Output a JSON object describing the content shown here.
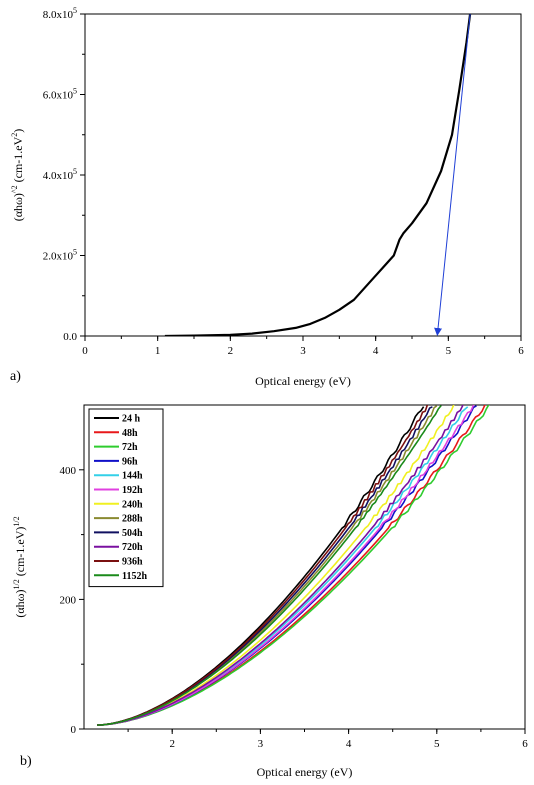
{
  "chart_data": [
    {
      "type": "line",
      "panel_label": "a)",
      "xlabel": "Optical energy (eV)",
      "ylabel": "(αhω)^2 (cm-1.eV)^2",
      "ylabel_base": "(αhω)",
      "ylabel_exp1": "^2",
      "ylabel_mid": " (cm-1.eV",
      "ylabel_close": ")",
      "ylabel_exp2": "2",
      "xlim": [
        0,
        6
      ],
      "ylim": [
        0,
        800000
      ],
      "xticks": [
        0,
        1,
        2,
        3,
        4,
        5,
        6
      ],
      "xtick_labels": [
        "0",
        "1",
        "2",
        "3",
        "4",
        "5",
        "6"
      ],
      "yticks": [
        0,
        200000,
        400000,
        600000,
        800000
      ],
      "ytick_labels": [
        {
          "mantissa": "0.0",
          "exp": ""
        },
        {
          "mantissa": "2.0x10",
          "exp": "5"
        },
        {
          "mantissa": "4.0x10",
          "exp": "5"
        },
        {
          "mantissa": "6.0x10",
          "exp": "5"
        },
        {
          "mantissa": "8.0x10",
          "exp": "5"
        }
      ],
      "series": [
        {
          "color": "#000000",
          "x": [
            1.1,
            1.5,
            2.0,
            2.3,
            2.6,
            2.9,
            3.1,
            3.3,
            3.5,
            3.7,
            3.9,
            4.1,
            4.25,
            4.33,
            4.38,
            4.5,
            4.7,
            4.9,
            5.05,
            5.15,
            5.25,
            5.3
          ],
          "y": [
            0,
            1000,
            3000,
            6000,
            12000,
            20000,
            30000,
            45000,
            65000,
            90000,
            130000,
            170000,
            200000,
            240000,
            255000,
            280000,
            330000,
            410000,
            500000,
            610000,
            730000,
            800000
          ]
        }
      ],
      "annotations": [
        {
          "type": "arrow",
          "color": "#1f3fd6",
          "from": [
            5.3,
            800000
          ],
          "to": [
            4.85,
            0
          ]
        }
      ]
    },
    {
      "type": "line",
      "panel_label": "b)",
      "xlabel": "Optical energy (eV)",
      "ylabel": "(αhω)^1/2 (cm-1.eV)^1/2",
      "ylabel_base": "(αhω)",
      "ylabel_exp1": "1/2",
      "ylabel_mid": " (cm-1.eV)",
      "ylabel_close": "",
      "ylabel_exp2": "1/2",
      "xlim": [
        1,
        6
      ],
      "ylim": [
        0,
        500
      ],
      "xticks": [
        2,
        3,
        4,
        5,
        6
      ],
      "xtick_labels": [
        "2",
        "3",
        "4",
        "5",
        "6"
      ],
      "yticks": [
        0,
        200,
        400
      ],
      "ytick_labels": [
        {
          "mantissa": "0",
          "exp": ""
        },
        {
          "mantissa": "200",
          "exp": ""
        },
        {
          "mantissa": "400",
          "exp": ""
        }
      ],
      "legend_position": "top-left",
      "series": [
        {
          "name": "24 h",
          "color": "#000000",
          "x0": 1.15,
          "xe": 4.85
        },
        {
          "name": "48h",
          "color": "#e8181a",
          "x0": 1.15,
          "xe": 5.55
        },
        {
          "name": "72h",
          "color": "#2ecc2e",
          "x0": 1.15,
          "xe": 5.6
        },
        {
          "name": "96h",
          "color": "#1010c8",
          "x0": 1.15,
          "xe": 5.45
        },
        {
          "name": "144h",
          "color": "#33d0e8",
          "x0": 1.15,
          "xe": 5.35
        },
        {
          "name": "192h",
          "color": "#e040e0",
          "x0": 1.15,
          "xe": 5.42
        },
        {
          "name": "240h",
          "color": "#f0f020",
          "x0": 1.15,
          "xe": 5.2
        },
        {
          "name": "288h",
          "color": "#8a8a30",
          "x0": 1.15,
          "xe": 5.0
        },
        {
          "name": "504h",
          "color": "#101060",
          "x0": 1.15,
          "xe": 4.95
        },
        {
          "name": "720h",
          "color": "#7a10a0",
          "x0": 1.15,
          "xe": 5.3
        },
        {
          "name": "936h",
          "color": "#7a1010",
          "x0": 1.15,
          "xe": 4.9
        },
        {
          "name": "1152h",
          "color": "#1a8a1a",
          "x0": 1.15,
          "xe": 5.05
        }
      ]
    }
  ]
}
